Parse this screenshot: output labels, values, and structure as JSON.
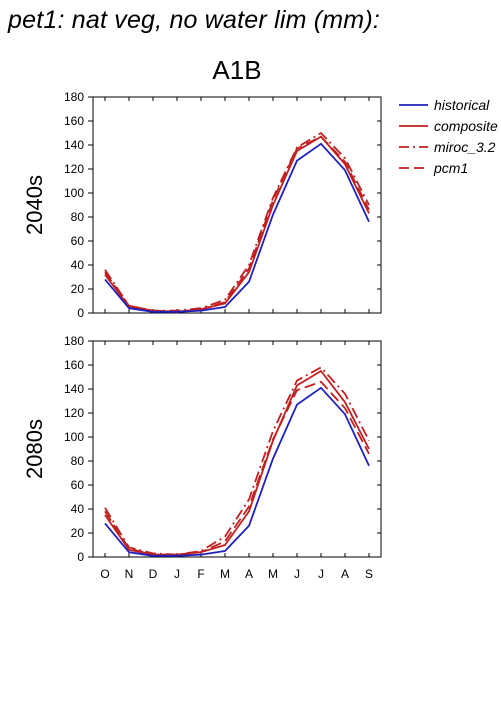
{
  "title": "pet1: nat veg, no water lim (mm):",
  "scenario": "A1B",
  "colors": {
    "historical": "#2020c0",
    "scenarios": "#c02020"
  },
  "chart_data": [
    {
      "type": "line",
      "panel_label": "2040s",
      "categories": [
        "O",
        "N",
        "D",
        "J",
        "F",
        "M",
        "A",
        "M",
        "J",
        "J",
        "A",
        "S"
      ],
      "ylim": [
        0,
        180
      ],
      "yticks": [
        0,
        20,
        40,
        60,
        80,
        100,
        120,
        140,
        160,
        180
      ],
      "series": [
        {
          "name": "historical",
          "style": "solid",
          "color": "#2020c0",
          "values": [
            28,
            4,
            1,
            1,
            2,
            5,
            26,
            82,
            127,
            141,
            119,
            76
          ]
        },
        {
          "name": "composite",
          "style": "solid",
          "color": "#c02020",
          "values": [
            32,
            5,
            2,
            1,
            3,
            8,
            34,
            90,
            135,
            147,
            124,
            83
          ]
        },
        {
          "name": "miroc_3.2",
          "style": "dashdot",
          "color": "#c02020",
          "values": [
            36,
            6,
            2,
            2,
            4,
            11,
            40,
            96,
            138,
            150,
            129,
            90
          ]
        },
        {
          "name": "pcm1",
          "style": "dashed",
          "color": "#c02020",
          "values": [
            34,
            6,
            2,
            1,
            3,
            9,
            37,
            94,
            137,
            147,
            126,
            86
          ]
        }
      ]
    },
    {
      "type": "line",
      "panel_label": "2080s",
      "categories": [
        "O",
        "N",
        "D",
        "J",
        "F",
        "M",
        "A",
        "M",
        "J",
        "J",
        "A",
        "S"
      ],
      "ylim": [
        0,
        180
      ],
      "yticks": [
        0,
        20,
        40,
        60,
        80,
        100,
        120,
        140,
        160,
        180
      ],
      "series": [
        {
          "name": "historical",
          "style": "solid",
          "color": "#2020c0",
          "values": [
            28,
            4,
            1,
            1,
            2,
            5,
            26,
            82,
            127,
            141,
            119,
            76
          ]
        },
        {
          "name": "composite",
          "style": "solid",
          "color": "#c02020",
          "values": [
            35,
            6,
            2,
            2,
            4,
            10,
            38,
            97,
            143,
            155,
            129,
            90
          ]
        },
        {
          "name": "miroc_3.2",
          "style": "dashdot",
          "color": "#c02020",
          "values": [
            41,
            8,
            3,
            2,
            5,
            17,
            48,
            105,
            147,
            158,
            136,
            97
          ]
        },
        {
          "name": "pcm1",
          "style": "dashed",
          "color": "#c02020",
          "values": [
            38,
            7,
            2,
            2,
            4,
            13,
            42,
            98,
            139,
            146,
            124,
            86
          ]
        }
      ]
    }
  ],
  "legend": [
    {
      "label": "historical",
      "style": "solid",
      "color": "#2020c0"
    },
    {
      "label": "composite",
      "style": "solid",
      "color": "#c02020"
    },
    {
      "label": "miroc_3.2",
      "style": "dashdot",
      "color": "#c02020"
    },
    {
      "label": "pcm1",
      "style": "dashed",
      "color": "#c02020"
    }
  ]
}
